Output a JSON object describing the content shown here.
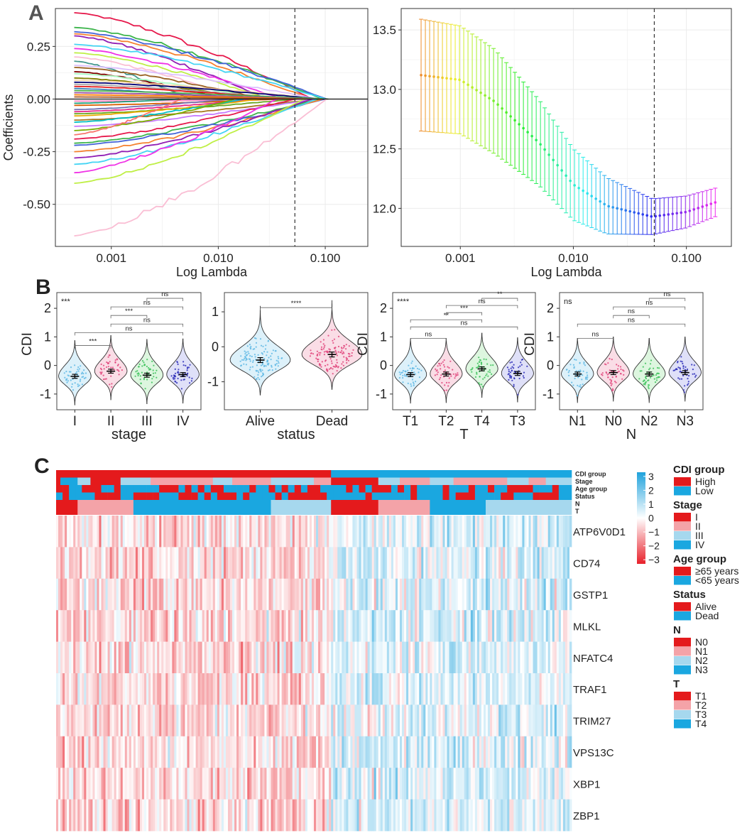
{
  "panels": {
    "A": "A",
    "B": "B",
    "C": "C"
  },
  "colors": {
    "red": "#E41A1C",
    "pink": "#F4A3A8",
    "lightblue": "#A6D8EE",
    "blue": "#1AA7E0",
    "grid": "#EBEBEB",
    "heat_low": "#E8202A",
    "heat_mid": "#FFFFFF",
    "heat_high": "#1FA2DC",
    "violin_fills": [
      "#DDF1FA",
      "#FADDE6",
      "#DDF6DF",
      "#DFE0F8"
    ],
    "violin_points": [
      "#5FB8E4",
      "#E0457B",
      "#3CC25A",
      "#2B2BB8"
    ]
  },
  "chart_data": [
    {
      "id": "A_left",
      "type": "line",
      "title": "",
      "xlabel": "Log Lambda",
      "ylabel": "Coefficients",
      "xscale": "log",
      "xlim": [
        0.0003,
        0.25
      ],
      "ylim": [
        -0.7,
        0.43
      ],
      "xticks": [
        0.001,
        0.01,
        0.1
      ],
      "xtick_labels": [
        "0.001",
        "0.010",
        "0.100"
      ],
      "yticks": [
        0.25,
        0.0,
        -0.25,
        -0.5
      ],
      "ytick_labels": [
        "0.25",
        "0.00",
        "-0.25",
        "-0.50"
      ],
      "vline_x": 0.052,
      "n_paths": 56,
      "description": "LASSO coefficient paths, one coloured line per feature"
    },
    {
      "id": "A_right",
      "type": "errorbar",
      "title": "",
      "xlabel": "Log Lambda",
      "ylabel": "",
      "xscale": "log",
      "xlim": [
        0.0003,
        0.25
      ],
      "ylim": [
        11.68,
        13.68
      ],
      "xticks": [
        0.001,
        0.01,
        0.1
      ],
      "xtick_labels": [
        "0.001",
        "0.010",
        "0.100"
      ],
      "yticks": [
        12.0,
        12.5,
        13.0,
        13.5
      ],
      "ytick_labels": [
        "12.0",
        "12.5",
        "13.0",
        "13.5"
      ],
      "vline_x": 0.052,
      "series": [
        {
          "name": "cv_mean",
          "x_start": 0.00045,
          "x_end": 0.18,
          "n_points": 70,
          "mean_knots": [
            [
              0.00045,
              13.12
            ],
            [
              0.001,
              13.08
            ],
            [
              0.002,
              12.9
            ],
            [
              0.005,
              12.55
            ],
            [
              0.01,
              12.2
            ],
            [
              0.02,
              12.02
            ],
            [
              0.05,
              11.93
            ],
            [
              0.1,
              11.97
            ],
            [
              0.18,
              12.05
            ]
          ],
          "half_width_knots": [
            [
              0.00045,
              0.47
            ],
            [
              0.002,
              0.44
            ],
            [
              0.01,
              0.3
            ],
            [
              0.05,
              0.15
            ],
            [
              0.18,
              0.12
            ]
          ]
        }
      ]
    },
    {
      "id": "B1",
      "type": "violin",
      "xlabel": "stage",
      "ylabel": "CDI",
      "ylim": [
        -1.55,
        2.55
      ],
      "yticks": [
        -1,
        0,
        1,
        2
      ],
      "ytick_labels": [
        "-1",
        "0",
        "1",
        "2"
      ],
      "categories": [
        "I",
        "II",
        "III",
        "IV"
      ],
      "means": [
        -0.38,
        -0.2,
        -0.34,
        -0.32
      ],
      "overall_label": "***",
      "comparisons": [
        {
          "a": 2,
          "b": 3,
          "y": 2.35,
          "label": "ns"
        },
        {
          "a": 1,
          "b": 3,
          "y": 2.05,
          "label": "ns"
        },
        {
          "a": 1,
          "b": 2,
          "y": 1.75,
          "label": "***"
        },
        {
          "a": 1,
          "b": 3,
          "y": 1.45,
          "label": "ns"
        },
        {
          "a": 0,
          "b": 3,
          "y": 1.15,
          "label": "ns"
        },
        {
          "a": 0,
          "b": 1,
          "y": 0.7,
          "label": "***"
        }
      ]
    },
    {
      "id": "B2",
      "type": "violin",
      "xlabel": "status",
      "ylabel": "",
      "ylim": [
        -1.8,
        1.55
      ],
      "yticks": [
        -1,
        0,
        1
      ],
      "ytick_labels": [
        "-1",
        "0",
        "1"
      ],
      "categories": [
        "Alive",
        "Dead"
      ],
      "means": [
        -0.38,
        -0.22
      ],
      "overall_label": "",
      "comparisons": [
        {
          "a": 0,
          "b": 1,
          "y": 1.12,
          "label": "****"
        }
      ]
    },
    {
      "id": "B3",
      "type": "violin",
      "xlabel": "T",
      "ylabel": "CDI",
      "ylim": [
        -1.55,
        2.55
      ],
      "yticks": [
        -1,
        0,
        1,
        2
      ],
      "ytick_labels": [
        "-1",
        "0",
        "1",
        "2"
      ],
      "categories": [
        "T1",
        "T2",
        "T4",
        "T3"
      ],
      "means": [
        -0.32,
        -0.3,
        -0.12,
        -0.28
      ],
      "overall_label": "****",
      "comparisons": [
        {
          "a": 2,
          "b": 3,
          "y": 2.35,
          "label": "**"
        },
        {
          "a": 1,
          "b": 3,
          "y": 2.1,
          "label": "ns"
        },
        {
          "a": 1,
          "b": 2,
          "y": 1.85,
          "label": "***"
        },
        {
          "a": 0,
          "b": 2,
          "y": 1.6,
          "label": "**"
        },
        {
          "a": 0,
          "b": 3,
          "y": 1.35,
          "label": "ns"
        },
        {
          "a": 0,
          "b": 1,
          "y": 0.95,
          "label": "ns"
        }
      ]
    },
    {
      "id": "B4",
      "type": "violin",
      "xlabel": "N",
      "ylabel": "CDI",
      "ylim": [
        -1.55,
        2.55
      ],
      "yticks": [
        -1,
        0,
        1,
        2
      ],
      "ytick_labels": [
        "-1",
        "0",
        "1",
        "2"
      ],
      "categories": [
        "N1",
        "N0",
        "N2",
        "N3"
      ],
      "means": [
        -0.3,
        -0.25,
        -0.3,
        -0.25
      ],
      "overall_label": "ns",
      "comparisons": [
        {
          "a": 2,
          "b": 3,
          "y": 2.35,
          "label": "ns"
        },
        {
          "a": 1,
          "b": 3,
          "y": 2.05,
          "label": "ns"
        },
        {
          "a": 1,
          "b": 2,
          "y": 1.75,
          "label": "ns"
        },
        {
          "a": 0,
          "b": 3,
          "y": 1.45,
          "label": "ns"
        },
        {
          "a": 0,
          "b": 1,
          "y": 0.95,
          "label": "ns"
        }
      ]
    },
    {
      "id": "C",
      "type": "heatmap",
      "genes": [
        "ATP6V0D1",
        "CD74",
        "GSTP1",
        "MLKL",
        "NFATC4",
        "TRAF1",
        "TRIM27",
        "VPS13C",
        "XBP1",
        "ZBP1"
      ],
      "n_samples": 240,
      "n_high": 128,
      "annotation_rows": [
        "CDI group",
        "Stage",
        "Age group",
        "Status",
        "N",
        "T"
      ],
      "scale_ticks": [
        3,
        2,
        1,
        0,
        -1,
        -2,
        -3
      ],
      "scale_range": [
        -3.3,
        3.3
      ],
      "legend": [
        {
          "title": "CDI group",
          "items": [
            {
              "label": "High",
              "color": "#E41A1C"
            },
            {
              "label": "Low",
              "color": "#1AA7E0"
            }
          ]
        },
        {
          "title": "Stage",
          "items": [
            {
              "label": "I",
              "color": "#E41A1C"
            },
            {
              "label": "II",
              "color": "#F4A3A8"
            },
            {
              "label": "III",
              "color": "#A6D8EE"
            },
            {
              "label": "IV",
              "color": "#1AA7E0"
            }
          ]
        },
        {
          "title": "Age group",
          "items": [
            {
              "label": "≥65 years",
              "color": "#E41A1C"
            },
            {
              "label": "<65 years",
              "color": "#1AA7E0"
            }
          ]
        },
        {
          "title": "Status",
          "items": [
            {
              "label": "Alive",
              "color": "#E41A1C"
            },
            {
              "label": "Dead",
              "color": "#1AA7E0"
            }
          ]
        },
        {
          "title": "N",
          "items": [
            {
              "label": "N0",
              "color": "#E41A1C"
            },
            {
              "label": "N1",
              "color": "#F4A3A8"
            },
            {
              "label": "N2",
              "color": "#A6D8EE"
            },
            {
              "label": "N3",
              "color": "#1AA7E0"
            }
          ]
        },
        {
          "title": "T",
          "items": [
            {
              "label": "T1",
              "color": "#E41A1C"
            },
            {
              "label": "T2",
              "color": "#F4A3A8"
            },
            {
              "label": "T3",
              "color": "#A6D8EE"
            },
            {
              "label": "T4",
              "color": "#1AA7E0"
            }
          ]
        }
      ]
    }
  ]
}
